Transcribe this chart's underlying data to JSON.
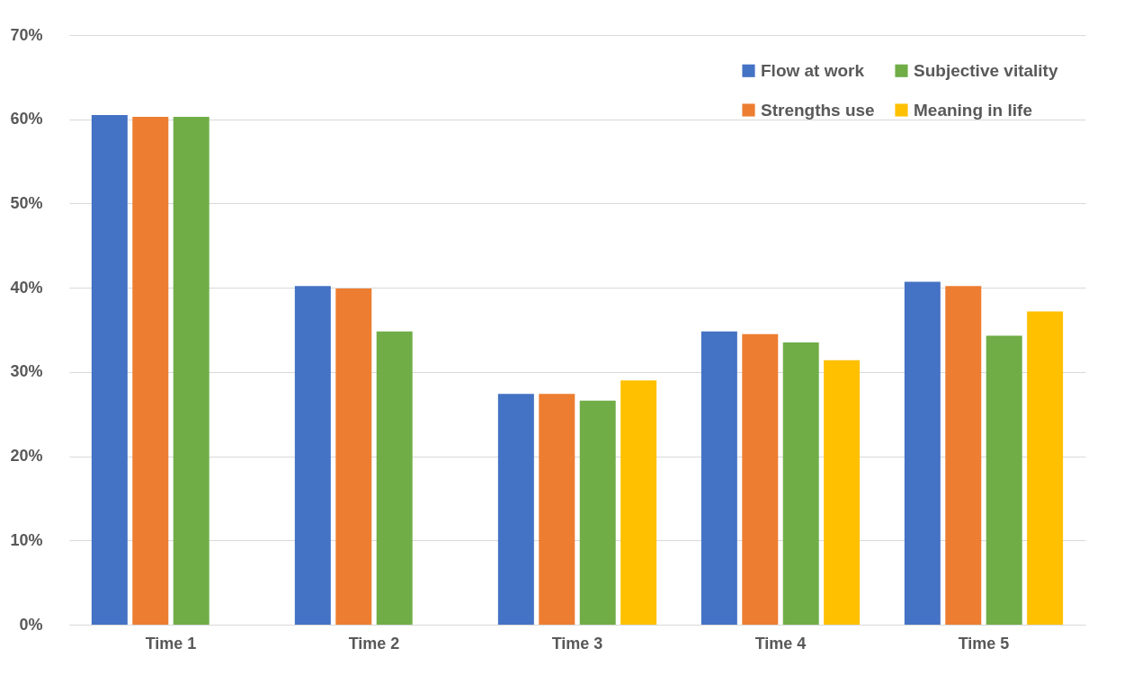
{
  "chart_data": {
    "type": "bar",
    "categories": [
      "Time 1",
      "Time 2",
      "Time 3",
      "Time 4",
      "Time 5"
    ],
    "series": [
      {
        "name": "Flow at work",
        "color": "#4472c4",
        "values": [
          60.5,
          40.2,
          27.4,
          34.8,
          40.7
        ]
      },
      {
        "name": "Strengths use",
        "color": "#ed7d31",
        "values": [
          60.3,
          39.9,
          27.4,
          34.5,
          40.2
        ]
      },
      {
        "name": "Subjective vitality",
        "color": "#70ad47",
        "values": [
          60.3,
          34.8,
          26.6,
          33.5,
          34.3
        ]
      },
      {
        "name": "Meaning in life",
        "color": "#ffc000",
        "values": [
          null,
          null,
          29.0,
          31.4,
          37.2
        ]
      }
    ],
    "ylim": [
      0,
      70
    ],
    "yticks": [
      {
        "value": 0,
        "label": "0%"
      },
      {
        "value": 10,
        "label": "10%"
      },
      {
        "value": 20,
        "label": "20%"
      },
      {
        "value": 30,
        "label": "30%"
      },
      {
        "value": 40,
        "label": "40%"
      },
      {
        "value": 50,
        "label": "50%"
      },
      {
        "value": 60,
        "label": "60%"
      },
      {
        "value": 70,
        "label": "70%"
      }
    ],
    "grid": "y",
    "legend": "top right"
  }
}
